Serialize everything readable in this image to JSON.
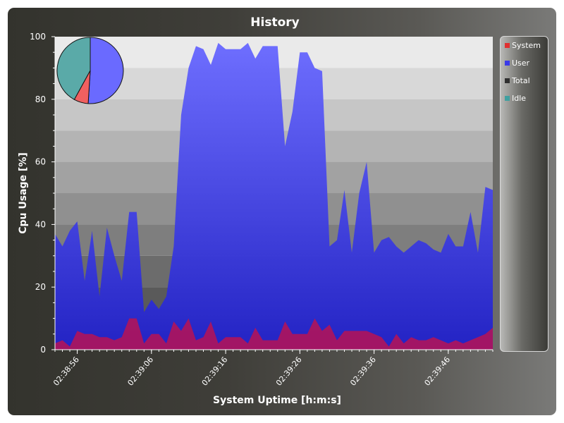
{
  "window": {
    "title": "History"
  },
  "colors": {
    "system": "#e03030",
    "user": "#3a3ae8",
    "total": "#303030",
    "idle": "#40a0a0"
  },
  "legend": {
    "items": [
      {
        "label": "System",
        "color": "#e03030"
      },
      {
        "label": "User",
        "color": "#3a3ae8"
      },
      {
        "label": "Total",
        "color": "#303030"
      },
      {
        "label": "Idle",
        "color": "#40a0a0"
      }
    ]
  },
  "chart_data": {
    "type": "area",
    "title": "History",
    "xlabel": "System Uptime [h:m:s]",
    "ylabel": "Cpu Usage [%]",
    "ylim": [
      0,
      100
    ],
    "yticks": [
      0,
      20,
      40,
      60,
      80,
      100
    ],
    "xlim": [
      "02:38:53",
      "02:39:52"
    ],
    "xtick_labels": [
      "02:38:56",
      "02:39:06",
      "02:39:16",
      "02:39:26",
      "02:39:36",
      "02:39:46"
    ],
    "x": [
      "02:38:53",
      "02:38:54",
      "02:38:55",
      "02:38:56",
      "02:38:57",
      "02:38:58",
      "02:38:59",
      "02:39:00",
      "02:39:01",
      "02:39:02",
      "02:39:03",
      "02:39:04",
      "02:39:05",
      "02:39:06",
      "02:39:07",
      "02:39:08",
      "02:39:09",
      "02:39:10",
      "02:39:11",
      "02:39:12",
      "02:39:13",
      "02:39:14",
      "02:39:15",
      "02:39:16",
      "02:39:17",
      "02:39:18",
      "02:39:19",
      "02:39:20",
      "02:39:21",
      "02:39:22",
      "02:39:23",
      "02:39:24",
      "02:39:25",
      "02:39:26",
      "02:39:27",
      "02:39:28",
      "02:39:29",
      "02:39:30",
      "02:39:31",
      "02:39:32",
      "02:39:33",
      "02:39:34",
      "02:39:35",
      "02:39:36",
      "02:39:37",
      "02:39:38",
      "02:39:39",
      "02:39:40",
      "02:39:41",
      "02:39:42",
      "02:39:43",
      "02:39:44",
      "02:39:45",
      "02:39:46",
      "02:39:47",
      "02:39:48",
      "02:39:49",
      "02:39:50",
      "02:39:51",
      "02:39:52"
    ],
    "grid": true,
    "background_bands": true,
    "legend_position": "right",
    "series": [
      {
        "name": "System",
        "values": [
          2,
          3,
          1,
          6,
          5,
          5,
          4,
          4,
          3,
          4,
          10,
          10,
          2,
          5,
          5,
          2,
          9,
          6,
          10,
          3,
          4,
          9,
          2,
          4,
          4,
          4,
          2,
          7,
          3,
          3,
          3,
          9,
          5,
          5,
          5,
          10,
          6,
          8,
          3,
          6,
          6,
          6,
          6,
          5,
          4,
          1,
          5,
          2,
          4,
          3,
          3,
          4,
          3,
          2,
          3,
          2,
          3,
          4,
          5,
          7
        ]
      },
      {
        "name": "User",
        "values": [
          37,
          33,
          38,
          41,
          22,
          38,
          17,
          39,
          30,
          22,
          44,
          44,
          12,
          16,
          13,
          17,
          33,
          75,
          90,
          97,
          96,
          91,
          98,
          96,
          96,
          96,
          98,
          93,
          97,
          97,
          97,
          65,
          76,
          95,
          95,
          90,
          89,
          33,
          35,
          51,
          31,
          50,
          60,
          31,
          35,
          36,
          33,
          31,
          33,
          35,
          34,
          32,
          31,
          37,
          33,
          33,
          44,
          31,
          52,
          51
        ]
      }
    ],
    "inset_pie": {
      "type": "pie",
      "slices": [
        {
          "name": "User",
          "value": 51
        },
        {
          "name": "System",
          "value": 7
        },
        {
          "name": "Idle",
          "value": 42
        }
      ]
    }
  }
}
